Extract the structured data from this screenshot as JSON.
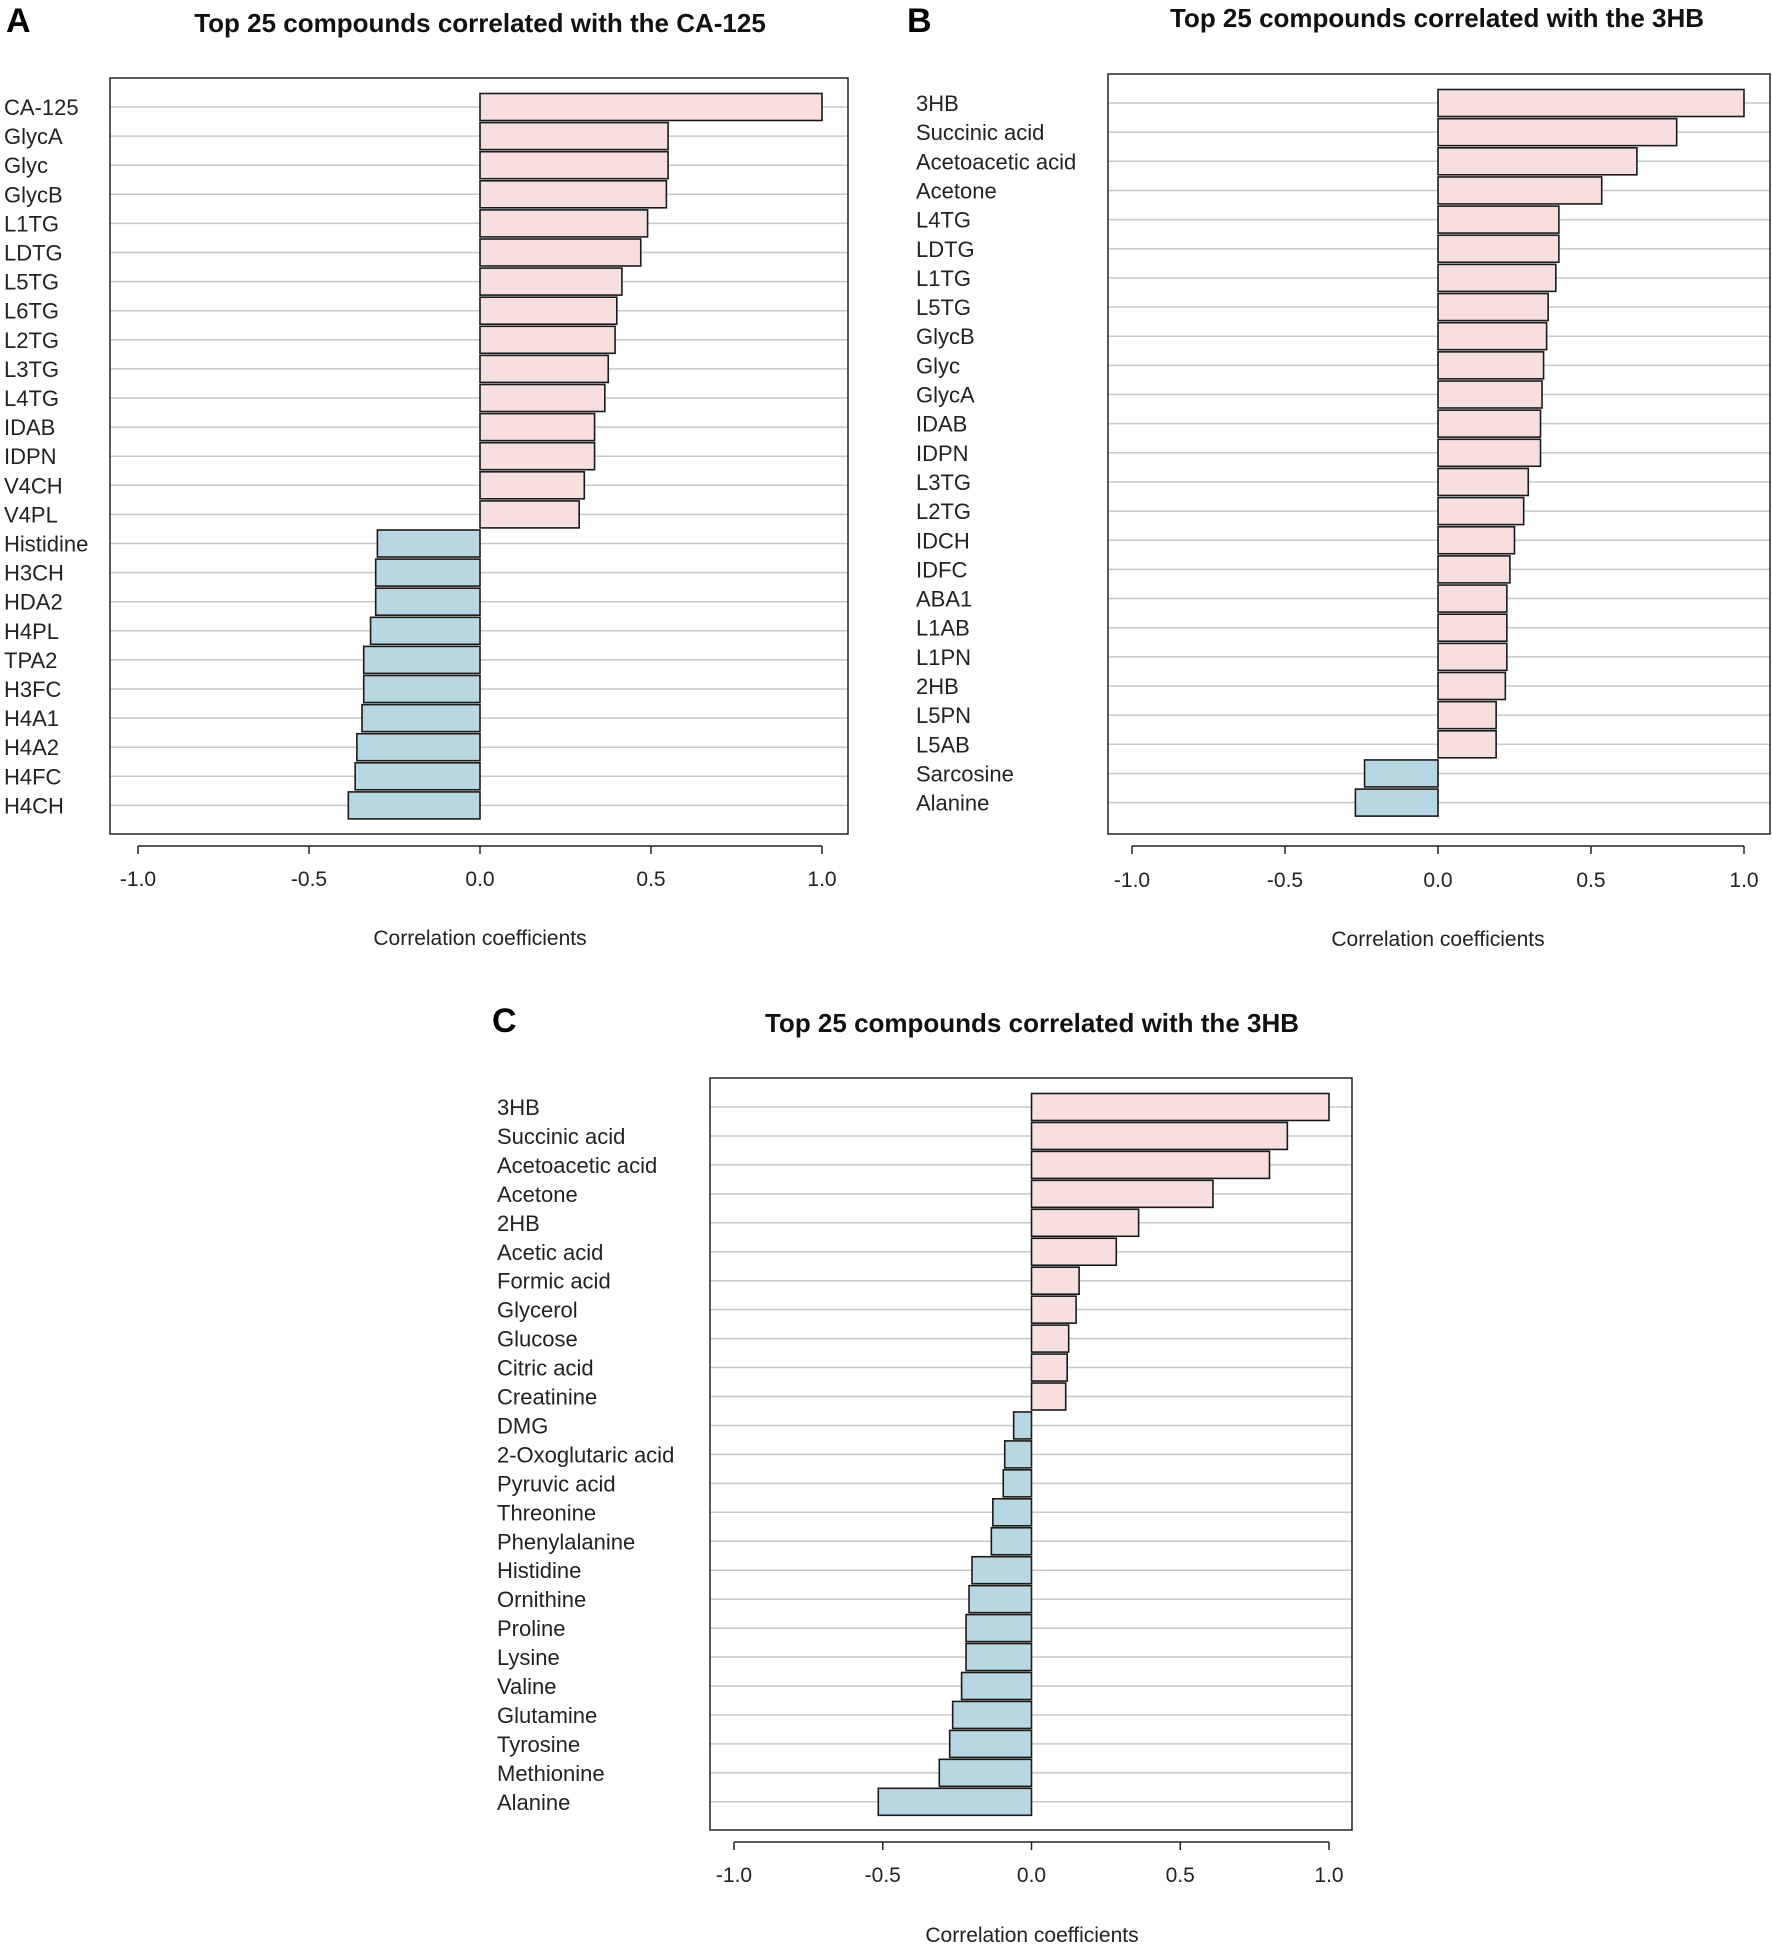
{
  "chart_data": [
    {
      "panel": "A",
      "type": "bar",
      "orientation": "horizontal",
      "title": "Top 25 compounds correlated with the CA-125",
      "xlabel": "Correlation coefficients",
      "xlim": [
        -1.0,
        1.0
      ],
      "xticks": [
        "-1.0",
        "-0.5",
        "0.0",
        "0.5",
        "1.0"
      ],
      "categories": [
        "CA-125",
        "GlycA",
        "Glyc",
        "GlycB",
        "L1TG",
        "LDTG",
        "L5TG",
        "L6TG",
        "L2TG",
        "L3TG",
        "L4TG",
        "IDAB",
        "IDPN",
        "V4CH",
        "V4PL",
        "Histidine",
        "H3CH",
        "HDA2",
        "H4PL",
        "TPA2",
        "H3FC",
        "H4A1",
        "H4A2",
        "H4FC",
        "H4CH"
      ],
      "values": [
        1.0,
        0.55,
        0.55,
        0.545,
        0.49,
        0.47,
        0.415,
        0.4,
        0.395,
        0.375,
        0.365,
        0.335,
        0.335,
        0.305,
        0.29,
        -0.3,
        -0.305,
        -0.305,
        -0.32,
        -0.34,
        -0.34,
        -0.345,
        -0.36,
        -0.365,
        -0.385
      ],
      "colors": {
        "positive": "#f7dfdf",
        "negative": "#b9d6e3"
      }
    },
    {
      "panel": "B",
      "type": "bar",
      "orientation": "horizontal",
      "title": "Top 25 compounds correlated with the 3HB",
      "xlabel": "Correlation coefficients",
      "xlim": [
        -1.0,
        1.0
      ],
      "xticks": [
        "-1.0",
        "-0.5",
        "0.0",
        "0.5",
        "1.0"
      ],
      "categories": [
        "3HB",
        "Succinic acid",
        "Acetoacetic acid",
        "Acetone",
        "L4TG",
        "LDTG",
        "L1TG",
        "L5TG",
        "GlycB",
        "Glyc",
        "GlycA",
        "IDAB",
        "IDPN",
        "L3TG",
        "L2TG",
        "IDCH",
        "IDFC",
        "ABA1",
        "L1AB",
        "L1PN",
        "2HB",
        "L5PN",
        "L5AB",
        "Sarcosine",
        "Alanine"
      ],
      "values": [
        1.0,
        0.78,
        0.65,
        0.535,
        0.395,
        0.395,
        0.385,
        0.36,
        0.355,
        0.345,
        0.34,
        0.335,
        0.335,
        0.295,
        0.28,
        0.25,
        0.235,
        0.225,
        0.225,
        0.225,
        0.22,
        0.19,
        0.19,
        -0.24,
        -0.27
      ],
      "colors": {
        "positive": "#f7dfdf",
        "negative": "#b9d6e3"
      }
    },
    {
      "panel": "C",
      "type": "bar",
      "orientation": "horizontal",
      "title": "Top 25 compounds correlated with the 3HB",
      "xlabel": "Correlation coefficients",
      "xlim": [
        -1.0,
        1.0
      ],
      "xticks": [
        "-1.0",
        "-0.5",
        "0.0",
        "0.5",
        "1.0"
      ],
      "categories": [
        "3HB",
        "Succinic acid",
        "Acetoacetic acid",
        "Acetone",
        "2HB",
        "Acetic acid",
        "Formic acid",
        "Glycerol",
        "Glucose",
        "Citric acid",
        "Creatinine",
        "DMG",
        "2-Oxoglutaric acid",
        "Pyruvic acid",
        "Threonine",
        "Phenylalanine",
        "Histidine",
        "Ornithine",
        "Proline",
        "Lysine",
        "Valine",
        "Glutamine",
        "Tyrosine",
        "Methionine",
        "Alanine"
      ],
      "values": [
        1.0,
        0.86,
        0.8,
        0.61,
        0.36,
        0.285,
        0.16,
        0.15,
        0.125,
        0.12,
        0.115,
        -0.06,
        -0.09,
        -0.095,
        -0.13,
        -0.135,
        -0.2,
        -0.21,
        -0.22,
        -0.22,
        -0.235,
        -0.265,
        -0.275,
        -0.31,
        -0.515
      ],
      "colors": {
        "positive": "#f7dfdf",
        "negative": "#b9d6e3"
      }
    }
  ]
}
